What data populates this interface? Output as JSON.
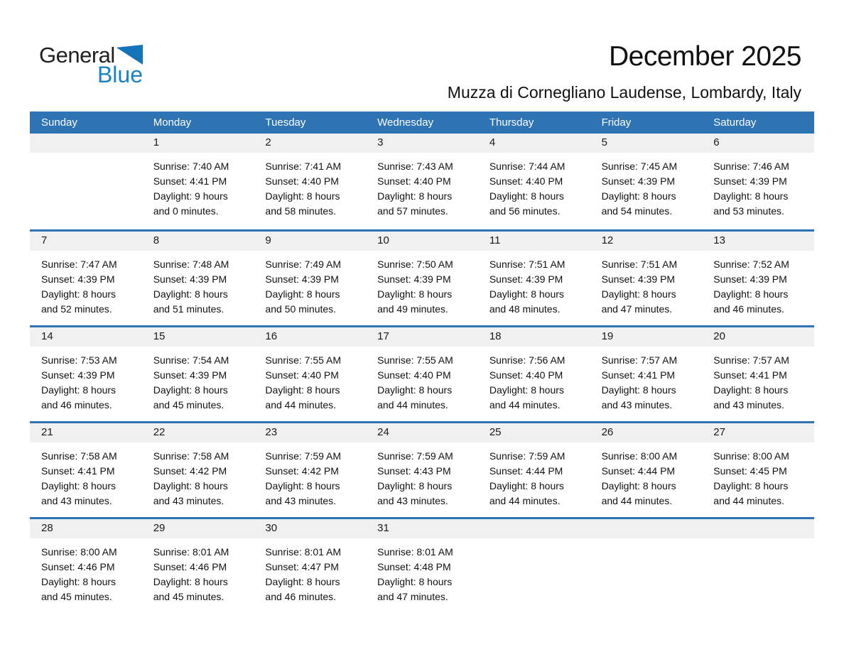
{
  "logo": {
    "word_general": "General",
    "word_blue": "Blue"
  },
  "title": "December 2025",
  "subtitle": "Muzza di Cornegliano Laudense, Lombardy, Italy",
  "colors": {
    "header_bg": "#2E74B5",
    "week_border": "#2E74B5",
    "day_band_bg": "#F0F0F0",
    "logo_black": "#231F20",
    "logo_blue": "#1B82C6",
    "header_text": "#FFFFFF",
    "body_text": "#111111"
  },
  "calendar": {
    "weekdays": [
      "Sunday",
      "Monday",
      "Tuesday",
      "Wednesday",
      "Thursday",
      "Friday",
      "Saturday"
    ],
    "weeks": [
      [
        null,
        {
          "day": "1",
          "sunrise": "Sunrise: 7:40 AM",
          "sunset": "Sunset: 4:41 PM",
          "daylight_line1": "Daylight: 9 hours",
          "daylight_line2": "and 0 minutes."
        },
        {
          "day": "2",
          "sunrise": "Sunrise: 7:41 AM",
          "sunset": "Sunset: 4:40 PM",
          "daylight_line1": "Daylight: 8 hours",
          "daylight_line2": "and 58 minutes."
        },
        {
          "day": "3",
          "sunrise": "Sunrise: 7:43 AM",
          "sunset": "Sunset: 4:40 PM",
          "daylight_line1": "Daylight: 8 hours",
          "daylight_line2": "and 57 minutes."
        },
        {
          "day": "4",
          "sunrise": "Sunrise: 7:44 AM",
          "sunset": "Sunset: 4:40 PM",
          "daylight_line1": "Daylight: 8 hours",
          "daylight_line2": "and 56 minutes."
        },
        {
          "day": "5",
          "sunrise": "Sunrise: 7:45 AM",
          "sunset": "Sunset: 4:39 PM",
          "daylight_line1": "Daylight: 8 hours",
          "daylight_line2": "and 54 minutes."
        },
        {
          "day": "6",
          "sunrise": "Sunrise: 7:46 AM",
          "sunset": "Sunset: 4:39 PM",
          "daylight_line1": "Daylight: 8 hours",
          "daylight_line2": "and 53 minutes."
        }
      ],
      [
        {
          "day": "7",
          "sunrise": "Sunrise: 7:47 AM",
          "sunset": "Sunset: 4:39 PM",
          "daylight_line1": "Daylight: 8 hours",
          "daylight_line2": "and 52 minutes."
        },
        {
          "day": "8",
          "sunrise": "Sunrise: 7:48 AM",
          "sunset": "Sunset: 4:39 PM",
          "daylight_line1": "Daylight: 8 hours",
          "daylight_line2": "and 51 minutes."
        },
        {
          "day": "9",
          "sunrise": "Sunrise: 7:49 AM",
          "sunset": "Sunset: 4:39 PM",
          "daylight_line1": "Daylight: 8 hours",
          "daylight_line2": "and 50 minutes."
        },
        {
          "day": "10",
          "sunrise": "Sunrise: 7:50 AM",
          "sunset": "Sunset: 4:39 PM",
          "daylight_line1": "Daylight: 8 hours",
          "daylight_line2": "and 49 minutes."
        },
        {
          "day": "11",
          "sunrise": "Sunrise: 7:51 AM",
          "sunset": "Sunset: 4:39 PM",
          "daylight_line1": "Daylight: 8 hours",
          "daylight_line2": "and 48 minutes."
        },
        {
          "day": "12",
          "sunrise": "Sunrise: 7:51 AM",
          "sunset": "Sunset: 4:39 PM",
          "daylight_line1": "Daylight: 8 hours",
          "daylight_line2": "and 47 minutes."
        },
        {
          "day": "13",
          "sunrise": "Sunrise: 7:52 AM",
          "sunset": "Sunset: 4:39 PM",
          "daylight_line1": "Daylight: 8 hours",
          "daylight_line2": "and 46 minutes."
        }
      ],
      [
        {
          "day": "14",
          "sunrise": "Sunrise: 7:53 AM",
          "sunset": "Sunset: 4:39 PM",
          "daylight_line1": "Daylight: 8 hours",
          "daylight_line2": "and 46 minutes."
        },
        {
          "day": "15",
          "sunrise": "Sunrise: 7:54 AM",
          "sunset": "Sunset: 4:39 PM",
          "daylight_line1": "Daylight: 8 hours",
          "daylight_line2": "and 45 minutes."
        },
        {
          "day": "16",
          "sunrise": "Sunrise: 7:55 AM",
          "sunset": "Sunset: 4:40 PM",
          "daylight_line1": "Daylight: 8 hours",
          "daylight_line2": "and 44 minutes."
        },
        {
          "day": "17",
          "sunrise": "Sunrise: 7:55 AM",
          "sunset": "Sunset: 4:40 PM",
          "daylight_line1": "Daylight: 8 hours",
          "daylight_line2": "and 44 minutes."
        },
        {
          "day": "18",
          "sunrise": "Sunrise: 7:56 AM",
          "sunset": "Sunset: 4:40 PM",
          "daylight_line1": "Daylight: 8 hours",
          "daylight_line2": "and 44 minutes."
        },
        {
          "day": "19",
          "sunrise": "Sunrise: 7:57 AM",
          "sunset": "Sunset: 4:41 PM",
          "daylight_line1": "Daylight: 8 hours",
          "daylight_line2": "and 43 minutes."
        },
        {
          "day": "20",
          "sunrise": "Sunrise: 7:57 AM",
          "sunset": "Sunset: 4:41 PM",
          "daylight_line1": "Daylight: 8 hours",
          "daylight_line2": "and 43 minutes."
        }
      ],
      [
        {
          "day": "21",
          "sunrise": "Sunrise: 7:58 AM",
          "sunset": "Sunset: 4:41 PM",
          "daylight_line1": "Daylight: 8 hours",
          "daylight_line2": "and 43 minutes."
        },
        {
          "day": "22",
          "sunrise": "Sunrise: 7:58 AM",
          "sunset": "Sunset: 4:42 PM",
          "daylight_line1": "Daylight: 8 hours",
          "daylight_line2": "and 43 minutes."
        },
        {
          "day": "23",
          "sunrise": "Sunrise: 7:59 AM",
          "sunset": "Sunset: 4:42 PM",
          "daylight_line1": "Daylight: 8 hours",
          "daylight_line2": "and 43 minutes."
        },
        {
          "day": "24",
          "sunrise": "Sunrise: 7:59 AM",
          "sunset": "Sunset: 4:43 PM",
          "daylight_line1": "Daylight: 8 hours",
          "daylight_line2": "and 43 minutes."
        },
        {
          "day": "25",
          "sunrise": "Sunrise: 7:59 AM",
          "sunset": "Sunset: 4:44 PM",
          "daylight_line1": "Daylight: 8 hours",
          "daylight_line2": "and 44 minutes."
        },
        {
          "day": "26",
          "sunrise": "Sunrise: 8:00 AM",
          "sunset": "Sunset: 4:44 PM",
          "daylight_line1": "Daylight: 8 hours",
          "daylight_line2": "and 44 minutes."
        },
        {
          "day": "27",
          "sunrise": "Sunrise: 8:00 AM",
          "sunset": "Sunset: 4:45 PM",
          "daylight_line1": "Daylight: 8 hours",
          "daylight_line2": "and 44 minutes."
        }
      ],
      [
        {
          "day": "28",
          "sunrise": "Sunrise: 8:00 AM",
          "sunset": "Sunset: 4:46 PM",
          "daylight_line1": "Daylight: 8 hours",
          "daylight_line2": "and 45 minutes."
        },
        {
          "day": "29",
          "sunrise": "Sunrise: 8:01 AM",
          "sunset": "Sunset: 4:46 PM",
          "daylight_line1": "Daylight: 8 hours",
          "daylight_line2": "and 45 minutes."
        },
        {
          "day": "30",
          "sunrise": "Sunrise: 8:01 AM",
          "sunset": "Sunset: 4:47 PM",
          "daylight_line1": "Daylight: 8 hours",
          "daylight_line2": "and 46 minutes."
        },
        {
          "day": "31",
          "sunrise": "Sunrise: 8:01 AM",
          "sunset": "Sunset: 4:48 PM",
          "daylight_line1": "Daylight: 8 hours",
          "daylight_line2": "and 47 minutes."
        },
        null,
        null,
        null
      ]
    ]
  }
}
